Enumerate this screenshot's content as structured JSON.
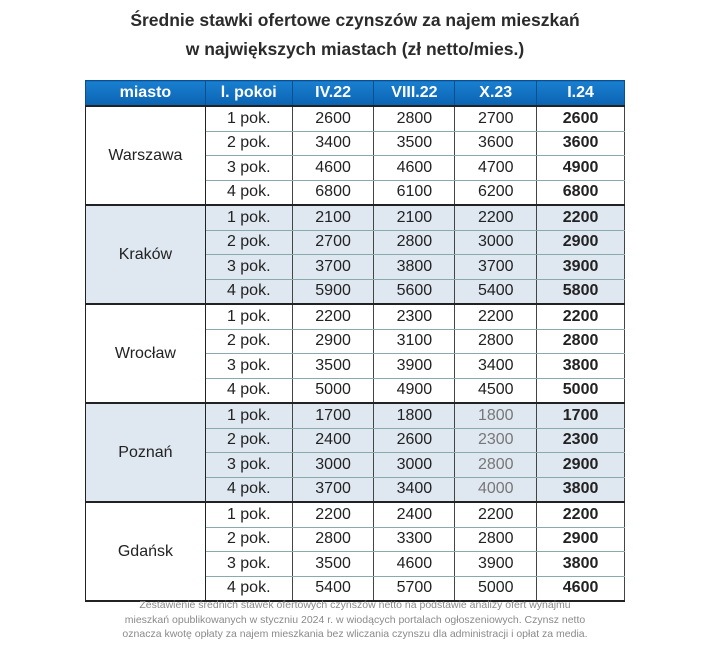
{
  "title": {
    "line1": "Średnie stawki ofertowe czynszów za najem mieszkań",
    "line2": "w największych miastach (zł netto/mies.)"
  },
  "table": {
    "headers": [
      "miasto",
      "l. pokoi",
      "IV.22",
      "VIII.22",
      "X.23",
      "I.24"
    ],
    "groups": [
      {
        "city": "Warszawa",
        "shaded": false,
        "rows": [
          [
            "1 pok.",
            "2600",
            "2800",
            "2700",
            "2600"
          ],
          [
            "2 pok.",
            "3400",
            "3500",
            "3600",
            "3600"
          ],
          [
            "3 pok.",
            "4600",
            "4600",
            "4700",
            "4900"
          ],
          [
            "4 pok.",
            "6800",
            "6100",
            "6200",
            "6800"
          ]
        ]
      },
      {
        "city": "Kraków",
        "shaded": true,
        "rows": [
          [
            "1 pok.",
            "2100",
            "2100",
            "2200",
            "2200"
          ],
          [
            "2 pok.",
            "2700",
            "2800",
            "3000",
            "2900"
          ],
          [
            "3 pok.",
            "3700",
            "3800",
            "3700",
            "3900"
          ],
          [
            "4 pok.",
            "5900",
            "5600",
            "5400",
            "5800"
          ]
        ]
      },
      {
        "city": "Wrocław",
        "shaded": false,
        "rows": [
          [
            "1 pok.",
            "2200",
            "2300",
            "2200",
            "2200"
          ],
          [
            "2 pok.",
            "2900",
            "3100",
            "2800",
            "2800"
          ],
          [
            "3 pok.",
            "3500",
            "3900",
            "3400",
            "3800"
          ],
          [
            "4 pok.",
            "5000",
            "4900",
            "4500",
            "5000"
          ]
        ]
      },
      {
        "city": "Poznań",
        "shaded": true,
        "rows": [
          [
            "1 pok.",
            "1700",
            "1800",
            "1800",
            "1700"
          ],
          [
            "2 pok.",
            "2400",
            "2600",
            "2300",
            "2300"
          ],
          [
            "3 pok.",
            "3000",
            "3000",
            "2800",
            "2900"
          ],
          [
            "4 pok.",
            "3700",
            "3400",
            "4000",
            "3800"
          ]
        ]
      },
      {
        "city": "Gdańsk",
        "shaded": false,
        "rows": [
          [
            "1 pok.",
            "2200",
            "2400",
            "2200",
            "2200"
          ],
          [
            "2 pok.",
            "2800",
            "3300",
            "2800",
            "2900"
          ],
          [
            "3 pok.",
            "3500",
            "4600",
            "3900",
            "3800"
          ],
          [
            "4 pok.",
            "5400",
            "5700",
            "5000",
            "4600"
          ]
        ]
      }
    ]
  },
  "footer": {
    "line1": "Zestawienie średnich stawek ofertowych czynszów netto na podstawie analizy ofert wynajmu",
    "line2": "mieszkań opublikowanych w styczniu 2024 r. w wiodących portalach ogłoszeniowych. Czynsz netto",
    "line3": "oznacza kwotę opłaty za najem mieszkania bez wliczania czynszu dla administracji i opłat za media."
  },
  "colors": {
    "header": "#0b6fc2",
    "shaded_row": "#dfe7f0"
  }
}
